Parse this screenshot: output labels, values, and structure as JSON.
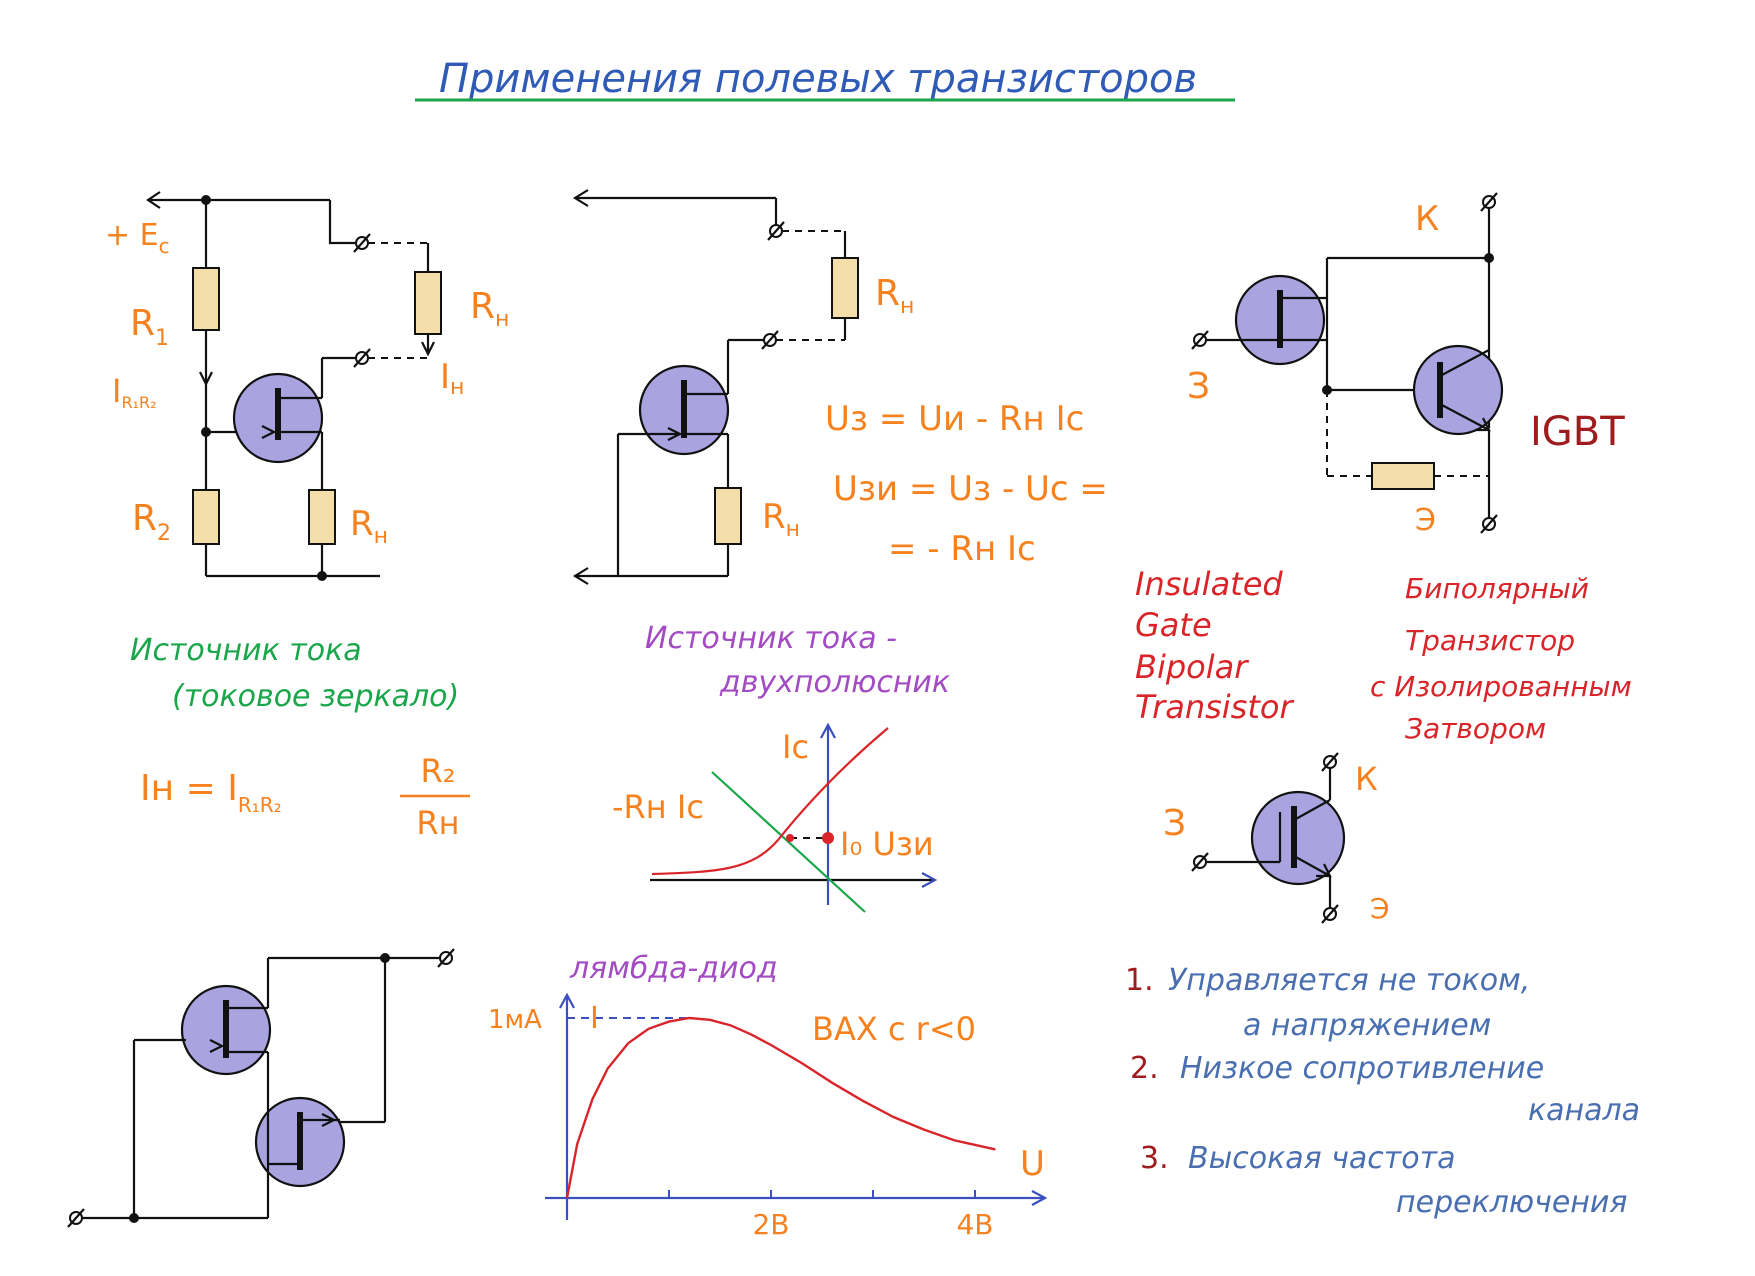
{
  "title": "Применения полевых транзисторов",
  "colors": {
    "title": "#2f5bb7",
    "underline": "#1aa64a",
    "labels": "#f5821f",
    "current_source_caption": "#1aa64a",
    "two_terminal_caption": "#a24bc3",
    "igbt_english": "#d9252a",
    "igbt_russian": "#d9252a",
    "list_numbers": "#9e1b1e",
    "list_text": "#4a6fb0",
    "fet_fill": "#a9a3e0",
    "resistor_fill": "#f3deaa"
  },
  "current_mirror": {
    "supply_label": "+ E",
    "supply_sub": "c",
    "r1_label": "R",
    "r1_sub": "1",
    "r2_label": "R",
    "r2_sub": "2",
    "rn_top_label": "R",
    "rn_top_sub": "н",
    "rn_bottom_label": "R",
    "rn_bottom_sub": "н",
    "i_r1r2_label": "I",
    "i_r1r2_sub": "R₁R₂",
    "i_load_label": "I",
    "i_load_sub": "н",
    "caption_line1": "Источник тока",
    "caption_line2": "(токовое зеркало)",
    "formula_lhs": "Iн = I",
    "formula_lhs_sub": "R₁R₂",
    "formula_num": "R₂",
    "formula_den": "Rн"
  },
  "two_terminal": {
    "rn_top_label": "R",
    "rn_top_sub": "н",
    "rn_bottom_label": "R",
    "rn_bottom_sub": "н",
    "eq1": "Uз = Uи - Rн Iс",
    "eq2": "Uзи = Uз - Uс =",
    "eq3": "= - Rн Iс",
    "caption_line1": "Источник тока -",
    "caption_line2": "двухполюсник",
    "graph_y_label": "Iс",
    "graph_line_label": "-Rн Iс",
    "graph_point_label": "I₀ Uзи"
  },
  "igbt": {
    "collector_label": "К",
    "gate_label": "З",
    "emitter_label": "Э",
    "name": "IGBT",
    "english": [
      "Insulated",
      "Gate",
      "Bipolar",
      "Transistor"
    ],
    "russian": [
      "Биполярный",
      "Транзистор",
      "с Изолированным",
      "Затвором"
    ],
    "symbol_collector_label": "К",
    "symbol_gate_label": "З",
    "symbol_emitter_label": "Э"
  },
  "properties": [
    {
      "num": "1.",
      "line1": "Управляется не током,",
      "line2": "а напряжением"
    },
    {
      "num": "2.",
      "line1": "Низкое сопротивление",
      "line2": "канала"
    },
    {
      "num": "3.",
      "line1": "Высокая частота",
      "line2": "переключения"
    }
  ],
  "lambda_diode": {
    "caption": "лямбда-диод",
    "note": "ВАХ с r<0",
    "y_label": "I",
    "x_label": "U",
    "y_tick_label": "1мА",
    "x_tick_labels": [
      "2В",
      "4В"
    ]
  },
  "chart_data": {
    "type": "line",
    "title": "",
    "xlabel": "U",
    "ylabel": "I",
    "x_unit": "В",
    "y_unit": "мА",
    "xlim": [
      0,
      4.2
    ],
    "ylim": [
      0,
      1.1
    ],
    "x_ticks": [
      1,
      2,
      3,
      4
    ],
    "x_tick_labels": [
      "",
      "2В",
      "",
      "4В"
    ],
    "y_tick_label": "1мА",
    "series": [
      {
        "x": [
          0,
          0.1,
          0.25,
          0.4,
          0.6,
          0.8,
          1.0,
          1.2,
          1.4,
          1.6,
          1.8,
          2.0,
          2.3,
          2.6,
          2.9,
          3.2,
          3.5,
          3.8,
          4.2
        ],
        "y": [
          0.0,
          0.3,
          0.55,
          0.72,
          0.86,
          0.94,
          0.98,
          1.0,
          0.99,
          0.96,
          0.91,
          0.85,
          0.75,
          0.64,
          0.54,
          0.45,
          0.38,
          0.32,
          0.27
        ]
      }
    ]
  }
}
